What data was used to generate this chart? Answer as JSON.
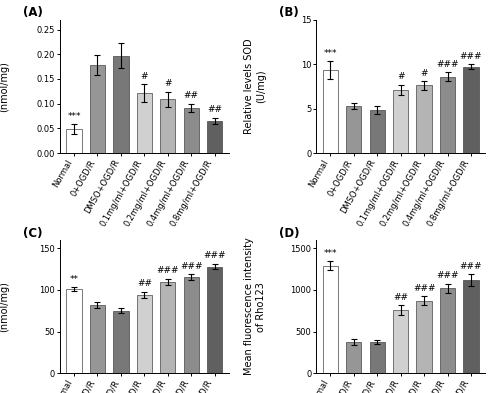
{
  "categories": [
    "Normal",
    "0+OGD/R",
    "DMSO+OGD/R",
    "0.1mg/ml+OGD/R",
    "0.2mg/ml+OGD/R",
    "0.4mg/ml+OGD/R",
    "0.8mg/ml+OGD/R"
  ],
  "bar_colors": [
    "#ffffff",
    "#969696",
    "#787878",
    "#d0d0d0",
    "#b4b4b4",
    "#8c8c8c",
    "#606060"
  ],
  "A": {
    "values": [
      0.048,
      0.178,
      0.197,
      0.121,
      0.109,
      0.092,
      0.065
    ],
    "errors": [
      0.01,
      0.02,
      0.025,
      0.018,
      0.015,
      0.008,
      0.007
    ],
    "ylabel": "Relative levels of MDA\n(nmol/mg)",
    "ylim": [
      0,
      0.27
    ],
    "yticks": [
      0.0,
      0.05,
      0.1,
      0.15,
      0.2,
      0.25
    ],
    "ytick_labels": [
      "0.00",
      "0.05",
      "0.10",
      "0.15",
      "0.20",
      "0.25"
    ],
    "sig_above": [
      "***",
      "",
      "",
      "#",
      "#",
      "##",
      "##"
    ],
    "panel": "A"
  },
  "B": {
    "values": [
      9.3,
      5.3,
      4.85,
      7.1,
      7.6,
      8.6,
      9.7
    ],
    "errors": [
      1.0,
      0.3,
      0.4,
      0.6,
      0.5,
      0.5,
      0.3
    ],
    "ylabel": "Relative levels SOD\n(U/mg)",
    "ylim": [
      0,
      15
    ],
    "yticks": [
      0,
      5,
      10,
      15
    ],
    "ytick_labels": [
      "0",
      "5",
      "10",
      "15"
    ],
    "sig_above": [
      "***",
      "",
      "",
      "#",
      "#",
      "###",
      "###"
    ],
    "panel": "B"
  },
  "C": {
    "values": [
      101,
      82,
      75,
      94,
      110,
      115,
      128
    ],
    "errors": [
      2.5,
      4,
      3,
      4,
      3.5,
      3.5,
      3.5
    ],
    "ylabel": "Relative levels GSH\n(nmol/mg)",
    "ylim": [
      0,
      160
    ],
    "yticks": [
      0,
      50,
      100,
      150
    ],
    "ytick_labels": [
      "0",
      "50",
      "100",
      "150"
    ],
    "sig_above": [
      "**",
      "",
      "",
      "##",
      "###",
      "###",
      "###"
    ],
    "panel": "C"
  },
  "D": {
    "values": [
      1290,
      375,
      375,
      760,
      870,
      1020,
      1120
    ],
    "errors": [
      55,
      35,
      25,
      55,
      55,
      55,
      70
    ],
    "ylabel": "Mean fluorescence intensity\nof Rho123",
    "ylim": [
      0,
      1600
    ],
    "yticks": [
      0,
      500,
      1000,
      1500
    ],
    "ytick_labels": [
      "0",
      "500",
      "1000",
      "1500"
    ],
    "sig_above": [
      "***",
      "",
      "",
      "##",
      "###",
      "###",
      "###"
    ],
    "panel": "D"
  },
  "tick_fontsize": 6.0,
  "label_fontsize": 7.0,
  "sig_fontsize": 6.5,
  "edgecolor": "#444444",
  "xtick_rotation": 60
}
